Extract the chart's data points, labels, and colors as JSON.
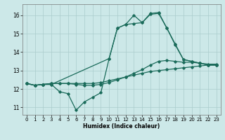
{
  "xlabel": "Humidex (Indice chaleur)",
  "bg_color": "#cce8e8",
  "grid_color": "#aacccc",
  "line_color": "#1a6b5a",
  "xlim": [
    -0.5,
    23.5
  ],
  "ylim": [
    10.6,
    16.6
  ],
  "xticks": [
    0,
    1,
    2,
    3,
    4,
    5,
    6,
    7,
    8,
    9,
    10,
    11,
    12,
    13,
    14,
    15,
    16,
    17,
    18,
    19,
    20,
    21,
    22,
    23
  ],
  "yticks": [
    11,
    12,
    13,
    14,
    15,
    16
  ],
  "line1_x": [
    0,
    1,
    2,
    3,
    4,
    5,
    6,
    7,
    8,
    9,
    10,
    11,
    12,
    13,
    14,
    15,
    16,
    17,
    18,
    19,
    20,
    21,
    22,
    23
  ],
  "line1_y": [
    12.3,
    12.2,
    12.25,
    12.3,
    12.3,
    12.3,
    12.3,
    12.3,
    12.3,
    12.35,
    12.45,
    12.55,
    12.65,
    12.75,
    12.85,
    12.95,
    13.0,
    13.05,
    13.1,
    13.15,
    13.2,
    13.25,
    13.3,
    13.3
  ],
  "line2_x": [
    0,
    1,
    2,
    3,
    4,
    5,
    6,
    7,
    8,
    9,
    10,
    11,
    12,
    13,
    14,
    15,
    16,
    17,
    18,
    19,
    20,
    21,
    22,
    23
  ],
  "line2_y": [
    12.3,
    12.2,
    12.25,
    12.3,
    12.3,
    12.3,
    12.25,
    12.2,
    12.2,
    12.25,
    12.35,
    12.5,
    12.65,
    12.85,
    13.05,
    13.3,
    13.5,
    13.55,
    13.5,
    13.45,
    13.45,
    13.4,
    13.35,
    13.35
  ],
  "line3_x": [
    0,
    1,
    2,
    3,
    4,
    5,
    6,
    7,
    8,
    9,
    10,
    11,
    12,
    13,
    14,
    15,
    16,
    17,
    18,
    19,
    20,
    21,
    22,
    23
  ],
  "line3_y": [
    12.3,
    12.2,
    12.25,
    12.25,
    11.85,
    11.75,
    10.85,
    11.3,
    11.55,
    11.8,
    13.65,
    15.3,
    15.5,
    15.55,
    15.6,
    16.05,
    16.1,
    15.3,
    14.45,
    13.6,
    13.5,
    13.4,
    13.3,
    13.3
  ],
  "line4_x": [
    0,
    1,
    2,
    3,
    10,
    11,
    12,
    13,
    14,
    15,
    16,
    17,
    18,
    19,
    20,
    21,
    22,
    23
  ],
  "line4_y": [
    12.3,
    12.2,
    12.25,
    12.25,
    13.65,
    15.3,
    15.5,
    16.0,
    15.6,
    16.1,
    16.15,
    15.3,
    14.4,
    13.6,
    13.5,
    13.4,
    13.3,
    13.3
  ]
}
